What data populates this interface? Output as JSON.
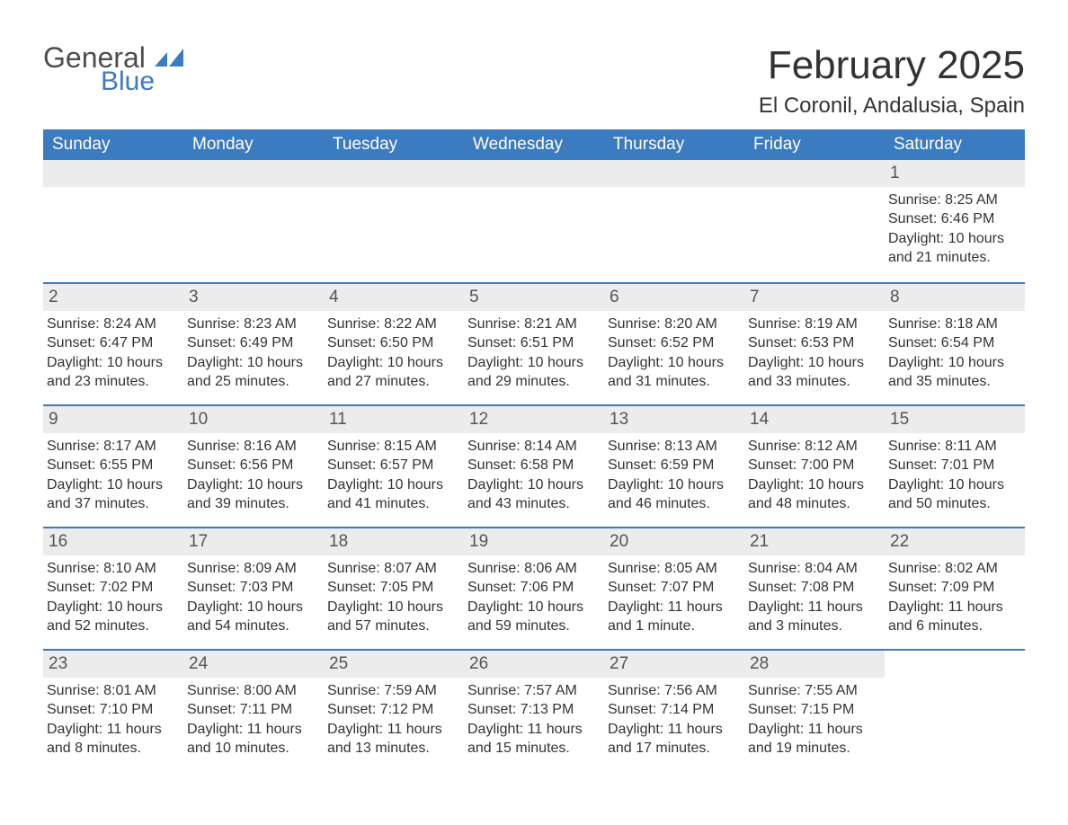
{
  "logo": {
    "general": "General",
    "blue": "Blue"
  },
  "title": "February 2025",
  "location": "El Coronil, Andalusia, Spain",
  "colors": {
    "header_bg": "#3b7bbf",
    "header_text": "#ffffff",
    "daynum_bg": "#ececec",
    "border": "#3b7bbf",
    "text": "#333333",
    "logo_general": "#4d4d4d",
    "logo_blue": "#3b7bbf"
  },
  "day_names": [
    "Sunday",
    "Monday",
    "Tuesday",
    "Wednesday",
    "Thursday",
    "Friday",
    "Saturday"
  ],
  "weeks": [
    [
      {
        "blank": true
      },
      {
        "blank": true
      },
      {
        "blank": true
      },
      {
        "blank": true
      },
      {
        "blank": true
      },
      {
        "blank": true
      },
      {
        "day": "1",
        "sunrise": "Sunrise: 8:25 AM",
        "sunset": "Sunset: 6:46 PM",
        "daylight": "Daylight: 10 hours and 21 minutes."
      }
    ],
    [
      {
        "day": "2",
        "sunrise": "Sunrise: 8:24 AM",
        "sunset": "Sunset: 6:47 PM",
        "daylight": "Daylight: 10 hours and 23 minutes."
      },
      {
        "day": "3",
        "sunrise": "Sunrise: 8:23 AM",
        "sunset": "Sunset: 6:49 PM",
        "daylight": "Daylight: 10 hours and 25 minutes."
      },
      {
        "day": "4",
        "sunrise": "Sunrise: 8:22 AM",
        "sunset": "Sunset: 6:50 PM",
        "daylight": "Daylight: 10 hours and 27 minutes."
      },
      {
        "day": "5",
        "sunrise": "Sunrise: 8:21 AM",
        "sunset": "Sunset: 6:51 PM",
        "daylight": "Daylight: 10 hours and 29 minutes."
      },
      {
        "day": "6",
        "sunrise": "Sunrise: 8:20 AM",
        "sunset": "Sunset: 6:52 PM",
        "daylight": "Daylight: 10 hours and 31 minutes."
      },
      {
        "day": "7",
        "sunrise": "Sunrise: 8:19 AM",
        "sunset": "Sunset: 6:53 PM",
        "daylight": "Daylight: 10 hours and 33 minutes."
      },
      {
        "day": "8",
        "sunrise": "Sunrise: 8:18 AM",
        "sunset": "Sunset: 6:54 PM",
        "daylight": "Daylight: 10 hours and 35 minutes."
      }
    ],
    [
      {
        "day": "9",
        "sunrise": "Sunrise: 8:17 AM",
        "sunset": "Sunset: 6:55 PM",
        "daylight": "Daylight: 10 hours and 37 minutes."
      },
      {
        "day": "10",
        "sunrise": "Sunrise: 8:16 AM",
        "sunset": "Sunset: 6:56 PM",
        "daylight": "Daylight: 10 hours and 39 minutes."
      },
      {
        "day": "11",
        "sunrise": "Sunrise: 8:15 AM",
        "sunset": "Sunset: 6:57 PM",
        "daylight": "Daylight: 10 hours and 41 minutes."
      },
      {
        "day": "12",
        "sunrise": "Sunrise: 8:14 AM",
        "sunset": "Sunset: 6:58 PM",
        "daylight": "Daylight: 10 hours and 43 minutes."
      },
      {
        "day": "13",
        "sunrise": "Sunrise: 8:13 AM",
        "sunset": "Sunset: 6:59 PM",
        "daylight": "Daylight: 10 hours and 46 minutes."
      },
      {
        "day": "14",
        "sunrise": "Sunrise: 8:12 AM",
        "sunset": "Sunset: 7:00 PM",
        "daylight": "Daylight: 10 hours and 48 minutes."
      },
      {
        "day": "15",
        "sunrise": "Sunrise: 8:11 AM",
        "sunset": "Sunset: 7:01 PM",
        "daylight": "Daylight: 10 hours and 50 minutes."
      }
    ],
    [
      {
        "day": "16",
        "sunrise": "Sunrise: 8:10 AM",
        "sunset": "Sunset: 7:02 PM",
        "daylight": "Daylight: 10 hours and 52 minutes."
      },
      {
        "day": "17",
        "sunrise": "Sunrise: 8:09 AM",
        "sunset": "Sunset: 7:03 PM",
        "daylight": "Daylight: 10 hours and 54 minutes."
      },
      {
        "day": "18",
        "sunrise": "Sunrise: 8:07 AM",
        "sunset": "Sunset: 7:05 PM",
        "daylight": "Daylight: 10 hours and 57 minutes."
      },
      {
        "day": "19",
        "sunrise": "Sunrise: 8:06 AM",
        "sunset": "Sunset: 7:06 PM",
        "daylight": "Daylight: 10 hours and 59 minutes."
      },
      {
        "day": "20",
        "sunrise": "Sunrise: 8:05 AM",
        "sunset": "Sunset: 7:07 PM",
        "daylight": "Daylight: 11 hours and 1 minute."
      },
      {
        "day": "21",
        "sunrise": "Sunrise: 8:04 AM",
        "sunset": "Sunset: 7:08 PM",
        "daylight": "Daylight: 11 hours and 3 minutes."
      },
      {
        "day": "22",
        "sunrise": "Sunrise: 8:02 AM",
        "sunset": "Sunset: 7:09 PM",
        "daylight": "Daylight: 11 hours and 6 minutes."
      }
    ],
    [
      {
        "day": "23",
        "sunrise": "Sunrise: 8:01 AM",
        "sunset": "Sunset: 7:10 PM",
        "daylight": "Daylight: 11 hours and 8 minutes."
      },
      {
        "day": "24",
        "sunrise": "Sunrise: 8:00 AM",
        "sunset": "Sunset: 7:11 PM",
        "daylight": "Daylight: 11 hours and 10 minutes."
      },
      {
        "day": "25",
        "sunrise": "Sunrise: 7:59 AM",
        "sunset": "Sunset: 7:12 PM",
        "daylight": "Daylight: 11 hours and 13 minutes."
      },
      {
        "day": "26",
        "sunrise": "Sunrise: 7:57 AM",
        "sunset": "Sunset: 7:13 PM",
        "daylight": "Daylight: 11 hours and 15 minutes."
      },
      {
        "day": "27",
        "sunrise": "Sunrise: 7:56 AM",
        "sunset": "Sunset: 7:14 PM",
        "daylight": "Daylight: 11 hours and 17 minutes."
      },
      {
        "day": "28",
        "sunrise": "Sunrise: 7:55 AM",
        "sunset": "Sunset: 7:15 PM",
        "daylight": "Daylight: 11 hours and 19 minutes."
      },
      {
        "blank": true
      }
    ]
  ]
}
